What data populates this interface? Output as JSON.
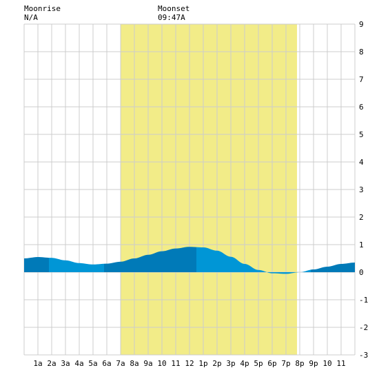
{
  "header": {
    "moonrise_label": "Moonrise",
    "moonrise_time": "N/A",
    "moonset_label": "Moonset",
    "moonset_time": "09:47A"
  },
  "colors": {
    "background": "#ffffff",
    "grid": "#cccccc",
    "daylight": "#f2ec88",
    "tide_light": "#0096d6",
    "tide_dark": "#007ab8"
  },
  "chart_data": {
    "type": "area",
    "title": "",
    "xlabel": "",
    "ylabel": "",
    "xlim": [
      0,
      24
    ],
    "ylim": [
      -3,
      9
    ],
    "grid": true,
    "x_tick_labels": [
      "1a",
      "2a",
      "3a",
      "4a",
      "5a",
      "6a",
      "7a",
      "8a",
      "9a",
      "10",
      "11",
      "12",
      "1p",
      "2p",
      "3p",
      "4p",
      "5p",
      "6p",
      "7p",
      "8p",
      "9p",
      "10",
      "11"
    ],
    "y_tick_labels": [
      "-3",
      "-2",
      "-1",
      "0",
      "1",
      "2",
      "3",
      "4",
      "5",
      "6",
      "7",
      "8",
      "9"
    ],
    "daylight_hours": [
      7.0,
      19.8
    ],
    "moonset_hour": 9.78,
    "tide_level_ft": {
      "x": [
        0,
        1,
        2,
        3,
        4,
        5,
        6,
        7,
        8,
        9,
        10,
        11,
        12,
        13,
        14,
        15,
        16,
        17,
        18,
        19,
        20,
        21,
        22,
        23,
        24
      ],
      "y": [
        0.5,
        0.55,
        0.52,
        0.43,
        0.33,
        0.28,
        0.31,
        0.38,
        0.5,
        0.63,
        0.76,
        0.86,
        0.92,
        0.9,
        0.78,
        0.56,
        0.3,
        0.08,
        -0.04,
        -0.06,
        0.0,
        0.1,
        0.2,
        0.3,
        0.35
      ]
    },
    "shade_alternation_hours": [
      1.8,
      5.8,
      12.5,
      20.8
    ]
  }
}
